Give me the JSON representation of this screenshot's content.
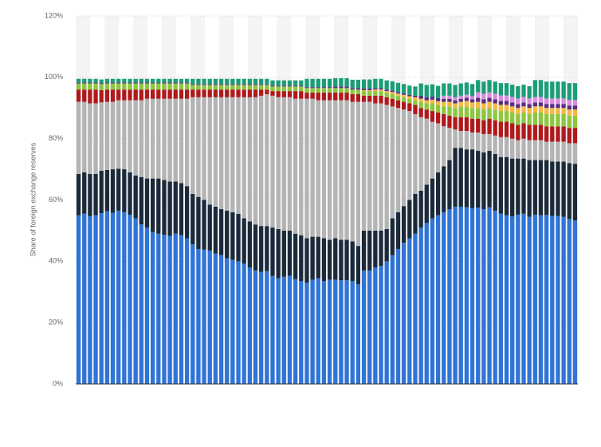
{
  "chart_data": {
    "type": "bar",
    "stacked": true,
    "y_label": "Share of foreign exchange reserves",
    "categories": [
      null,
      null,
      null,
      null,
      null,
      null,
      null,
      null,
      null,
      null,
      null,
      null,
      null,
      null,
      null,
      null,
      null,
      null,
      null,
      null,
      null,
      null,
      null,
      null,
      null,
      null,
      null,
      null,
      null,
      null,
      null,
      null,
      null,
      null,
      null,
      null,
      null,
      null,
      null,
      null,
      null,
      null,
      null,
      null,
      null,
      null,
      null,
      null,
      null,
      null,
      null,
      null,
      null,
      null,
      null,
      null,
      null,
      null,
      null,
      null,
      null,
      null,
      null,
      null,
      null,
      null,
      null,
      null,
      null,
      null,
      null,
      null,
      null,
      null,
      null,
      null,
      null,
      null,
      null,
      null,
      null,
      null,
      null,
      null,
      null,
      null,
      null,
      null
    ],
    "ylim": [
      0,
      120
    ],
    "yticks": [
      {
        "value": 0,
        "label": "0%"
      },
      {
        "value": 20,
        "label": "20%"
      },
      {
        "value": 40,
        "label": "40%"
      },
      {
        "value": 60,
        "label": "60%"
      },
      {
        "value": 80,
        "label": "80%"
      },
      {
        "value": 100,
        "label": "100%"
      },
      {
        "value": 120,
        "label": "120%"
      }
    ],
    "grid": true,
    "series": [
      {
        "color": "#2f74d6",
        "values": [
          55,
          55.5,
          54.7,
          55,
          55.7,
          56.3,
          55.8,
          56.5,
          56,
          55.2,
          54,
          52,
          51,
          49.5,
          49,
          48.6,
          48.3,
          49,
          48.5,
          47.5,
          45.5,
          44,
          43.8,
          43.5,
          42.5,
          42,
          41,
          40.5,
          40,
          39.2,
          38,
          37,
          36.5,
          36.8,
          35.2,
          34.5,
          35,
          35.3,
          34.2,
          33.5,
          33,
          34,
          34.5,
          33.5,
          34,
          34,
          33.8,
          33.8,
          33.5,
          32.5,
          37,
          37,
          38,
          38.5,
          40,
          42,
          44,
          46,
          47.5,
          49,
          51,
          52.5,
          54,
          55,
          56,
          57,
          57.8,
          57.8,
          57.6,
          57.3,
          57.5,
          57,
          57.6,
          56.5,
          55.5,
          55,
          54.6,
          55.2,
          55.5,
          54.5,
          55.2,
          55,
          55.1,
          54.8,
          54.8,
          54.5,
          53.8,
          53.3
        ]
      },
      {
        "color": "#1b2a3a",
        "values": [
          13.5,
          13.5,
          13.8,
          13.5,
          13.8,
          13.5,
          14.2,
          13.7,
          14,
          13.8,
          14,
          15.5,
          16,
          17.5,
          18,
          17.9,
          17.7,
          17,
          17,
          17,
          16.5,
          17,
          16.2,
          15,
          15.3,
          15,
          15.5,
          15.5,
          15.5,
          14.8,
          15,
          15,
          15,
          14.7,
          15.8,
          16,
          15,
          14.7,
          14.8,
          15,
          14.5,
          14,
          13.5,
          14,
          13,
          13.5,
          13.2,
          13.2,
          13,
          12.5,
          13,
          13,
          12,
          11.5,
          10.5,
          12,
          12,
          12,
          12.5,
          13,
          12,
          12.5,
          13,
          14,
          15,
          16,
          19.2,
          19.2,
          18.9,
          19.2,
          18.5,
          18.5,
          18.4,
          18.5,
          18.5,
          19,
          18.9,
          18.3,
          18,
          18.5,
          17.8,
          18,
          17.9,
          17.7,
          17.7,
          18,
          18.2,
          18.5
        ]
      },
      {
        "color": "#b4b4b4",
        "values": [
          23.5,
          23,
          23,
          23,
          22.3,
          22.2,
          22,
          22.3,
          22.5,
          23.5,
          24.5,
          25,
          26,
          26,
          26,
          26.5,
          27,
          27,
          27.5,
          28.5,
          31.5,
          32.5,
          33.5,
          35,
          35.7,
          36.5,
          37,
          37.5,
          38,
          39.5,
          40.5,
          41.5,
          42.5,
          43,
          43,
          43,
          43.5,
          43.5,
          44,
          44.5,
          45.5,
          45,
          44.5,
          45,
          45.5,
          45,
          45.5,
          45.5,
          45.5,
          47,
          42,
          42,
          41.5,
          41.5,
          40.5,
          36.5,
          34,
          31.5,
          29,
          26,
          24,
          21.5,
          18.5,
          16,
          13,
          10.5,
          6,
          5.5,
          6,
          5.5,
          6,
          6,
          5.5,
          6,
          6.5,
          6.5,
          6.5,
          6,
          6.5,
          6.5,
          6.5,
          6.5,
          6,
          6.5,
          6.5,
          6.5,
          6.5,
          6.7
        ]
      },
      {
        "color": "#b0191c",
        "values": [
          4,
          4,
          4.5,
          4.5,
          4,
          4,
          4,
          3.5,
          3.5,
          3.5,
          3.5,
          3.5,
          3,
          3,
          3,
          3,
          3,
          3,
          3,
          3,
          2.5,
          2.5,
          2.5,
          2.5,
          2.5,
          2.5,
          2.5,
          2.5,
          2.5,
          2.5,
          2.5,
          2.5,
          2,
          1.5,
          1.5,
          2,
          2,
          2,
          2.5,
          2.5,
          2,
          2,
          2.5,
          2.5,
          2.5,
          2.5,
          2.5,
          2.5,
          2.5,
          2.5,
          2,
          2,
          2.5,
          2.5,
          2.5,
          2.5,
          2.5,
          2.5,
          2.5,
          3,
          3,
          3,
          3.5,
          3.5,
          4,
          4,
          4,
          4.5,
          4.5,
          4.5,
          4.5,
          4.5,
          5,
          5,
          5,
          5,
          5,
          5,
          5,
          5,
          5,
          5,
          5,
          5,
          5,
          5,
          5,
          5
        ]
      },
      {
        "color": "#8dc63f",
        "values": [
          2,
          2,
          2,
          2,
          2,
          2,
          2,
          2,
          2,
          2,
          2,
          2,
          2,
          2,
          2,
          2,
          2,
          2,
          2,
          2,
          1.5,
          1.5,
          1.5,
          1.5,
          1.5,
          1.5,
          1.5,
          1.5,
          1.5,
          1.5,
          1.5,
          1.5,
          1.5,
          1.5,
          1.5,
          1.5,
          1.5,
          1.5,
          1.5,
          1.5,
          1.5,
          1.5,
          1.5,
          1.5,
          1.5,
          1.5,
          1.5,
          1.5,
          1.5,
          1.5,
          1.5,
          1.5,
          1.5,
          1.5,
          1.5,
          1.5,
          1.5,
          1.5,
          1.5,
          1.5,
          2,
          2,
          2.5,
          2.5,
          2.5,
          3,
          3,
          3.5,
          3.5,
          3.5,
          3.5,
          3.5,
          3.5,
          3.5,
          3.5,
          3.5,
          3.5,
          3.5,
          3.5,
          3.5,
          4,
          4,
          4,
          4,
          4,
          4,
          4,
          4
        ]
      },
      {
        "color": "#f4b942",
        "values": [
          0,
          0,
          0,
          0,
          0,
          0,
          0,
          0,
          0,
          0,
          0,
          0,
          0,
          0,
          0,
          0,
          0,
          0,
          0,
          0,
          0,
          0,
          0,
          0,
          0,
          0,
          0,
          0,
          0,
          0,
          0,
          0,
          0,
          0,
          0,
          0,
          0,
          0,
          0,
          0,
          0,
          0,
          0,
          0,
          0,
          0,
          0,
          0,
          0,
          0,
          0.3,
          0.3,
          0.5,
          0.5,
          0.5,
          0.7,
          0.7,
          0.8,
          0.8,
          1,
          1,
          1,
          1.2,
          1.2,
          1.5,
          1.5,
          1.5,
          1.5,
          1.8,
          1.8,
          2,
          2,
          2,
          2,
          2,
          2,
          2,
          2,
          2,
          2,
          2,
          2,
          2,
          2,
          2,
          2,
          2,
          2
        ]
      },
      {
        "color": "#5a2d82",
        "values": [
          0.3,
          0.3,
          0.3,
          0.3,
          0.3,
          0.3,
          0.3,
          0.3,
          0.3,
          0.3,
          0.3,
          0.3,
          0.3,
          0.3,
          0.3,
          0.3,
          0.3,
          0.3,
          0.3,
          0.3,
          0.3,
          0.3,
          0.3,
          0.3,
          0.3,
          0.3,
          0.3,
          0.3,
          0.3,
          0.3,
          0.3,
          0.3,
          0.3,
          0.3,
          0.3,
          0.3,
          0.3,
          0.3,
          0.3,
          0.3,
          0.3,
          0.3,
          0.3,
          0.3,
          0.3,
          0.5,
          0.5,
          0.5,
          0.5,
          0.5,
          0.5,
          0.5,
          0.5,
          0.5,
          0.5,
          0.5,
          0.5,
          0.5,
          0.5,
          0.5,
          1,
          1,
          1,
          1,
          1,
          1,
          1,
          1,
          1,
          1,
          1.3,
          1.3,
          1.3,
          1.3,
          1.3,
          1.3,
          1.3,
          1.3,
          1.3,
          1.3,
          1.3,
          1.3,
          1.3,
          1.3,
          1.3,
          1.3,
          1.3,
          1.3
        ]
      },
      {
        "color": "#d98be0",
        "values": [
          0,
          0,
          0,
          0,
          0,
          0,
          0,
          0,
          0,
          0,
          0,
          0,
          0,
          0,
          0,
          0,
          0,
          0,
          0,
          0,
          0,
          0,
          0,
          0,
          0,
          0,
          0,
          0,
          0,
          0,
          0,
          0,
          0,
          0,
          0,
          0,
          0,
          0,
          0,
          0,
          0,
          0,
          0,
          0,
          0,
          0,
          0,
          0,
          0,
          0,
          0,
          0,
          0,
          0,
          0,
          0,
          0,
          0,
          0,
          0,
          0,
          0,
          0,
          0,
          1,
          1,
          1,
          1,
          1,
          1,
          1.8,
          1.8,
          1.8,
          1.8,
          1.8,
          1.8,
          1.8,
          1.8,
          1.8,
          1.8,
          1.8,
          1.8,
          1.8,
          1.8,
          1.8,
          1.8,
          1.8,
          1.8
        ]
      },
      {
        "color": "#1b9e77",
        "values": [
          1.2,
          1.2,
          1.2,
          1.2,
          1.2,
          1.2,
          1.2,
          1.2,
          1.2,
          1.2,
          1.2,
          1.2,
          1.2,
          1.2,
          1.2,
          1.2,
          1.2,
          1.2,
          1.2,
          1.2,
          1.7,
          1.7,
          1.7,
          1.7,
          1.7,
          1.7,
          1.7,
          1.7,
          1.7,
          1.7,
          1.7,
          1.7,
          1.7,
          1.7,
          1.7,
          1.7,
          1.7,
          1.7,
          1.7,
          1.7,
          2.7,
          2.7,
          2.7,
          2.7,
          2.7,
          2.7,
          2.7,
          2.7,
          2.7,
          2.7,
          3,
          3,
          3,
          3,
          3,
          3,
          3,
          3,
          3,
          3,
          4,
          4,
          4,
          4,
          4,
          4,
          4,
          4,
          4,
          4,
          4,
          4,
          4,
          4,
          4,
          4,
          4,
          4,
          4,
          4,
          5.5,
          5.5,
          5.5,
          5.5,
          5.5,
          5.5,
          5.5,
          5.5
        ]
      }
    ]
  }
}
